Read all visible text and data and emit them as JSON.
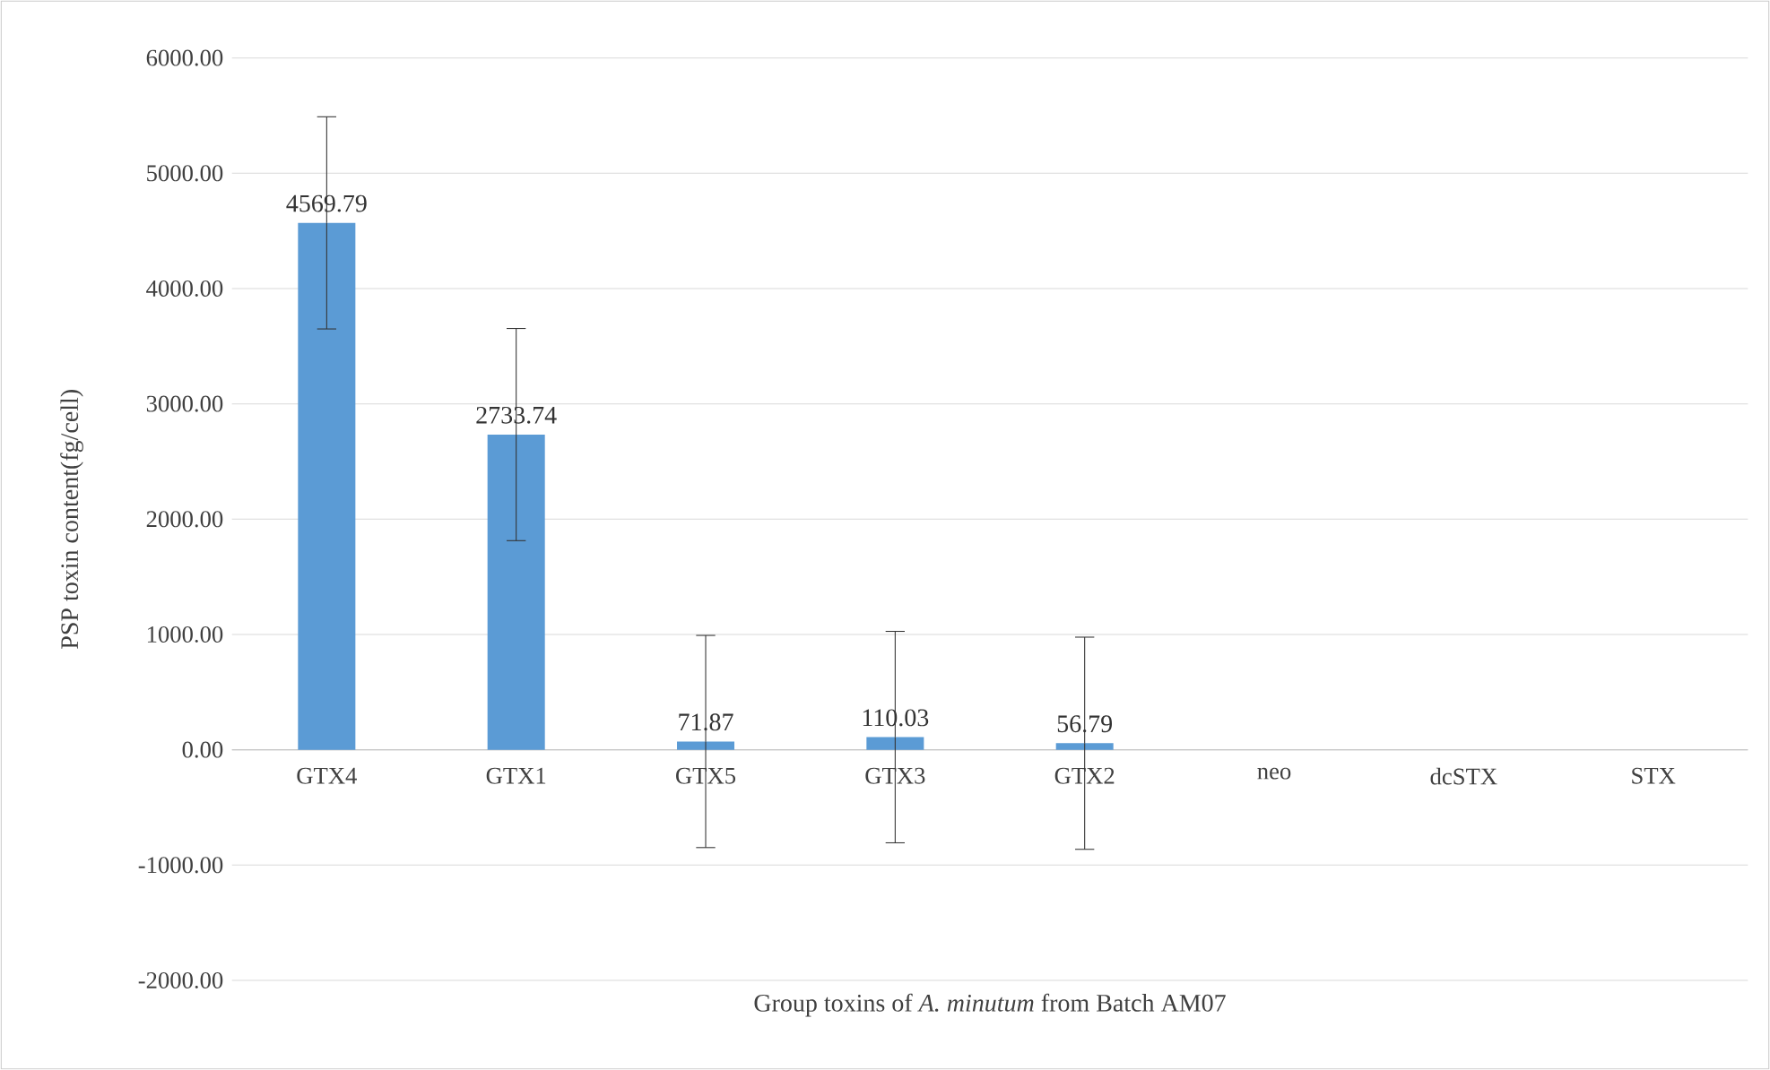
{
  "chart_data": {
    "type": "bar",
    "xlabel": "Group toxins of *A. minutum* from Batch AM07",
    "ylabel": "PSP toxin content(fg/cell)",
    "categories": [
      "GTX4",
      "GTX1",
      "GTX5",
      "GTX3",
      "GTX2",
      "neo",
      "dcSTX",
      "STX"
    ],
    "values": [
      4569.79,
      2733.74,
      71.87,
      110.03,
      56.79,
      null,
      null,
      null
    ],
    "errors": [
      920,
      920,
      920,
      917,
      920,
      null,
      null,
      null
    ],
    "value_labels": [
      "4569.79",
      "2733.74",
      "71.87",
      "110.03",
      "56.79",
      null,
      null,
      null
    ],
    "color": "#5b9bd5",
    "ylim": [
      -2000,
      6000
    ],
    "yticks": [
      {
        "value": -2000,
        "label": "-2000.00"
      },
      {
        "value": -1000,
        "label": "-1000.00"
      },
      {
        "value": 0,
        "label": "0.00"
      },
      {
        "value": 1000,
        "label": "1000.00"
      },
      {
        "value": 2000,
        "label": "2000.00"
      },
      {
        "value": 3000,
        "label": "3000.00"
      },
      {
        "value": 4000,
        "label": "4000.00"
      },
      {
        "value": 5000,
        "label": "5000.00"
      },
      {
        "value": 6000,
        "label": "6000.00"
      }
    ],
    "grid": "y"
  }
}
